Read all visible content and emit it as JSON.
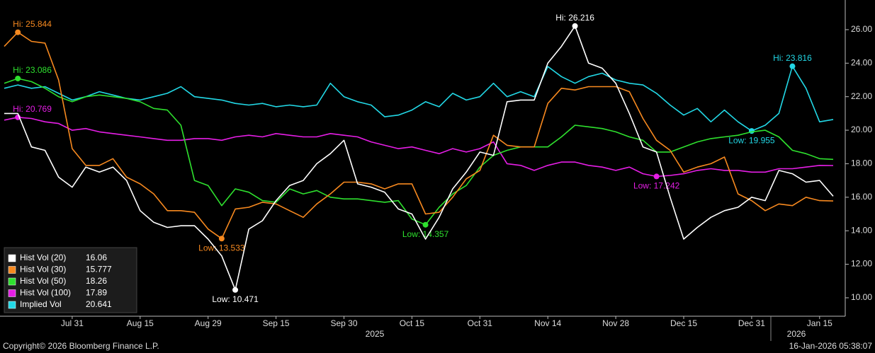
{
  "chart_data": {
    "type": "line",
    "categories": [
      null,
      null,
      null,
      null,
      null,
      "Jul 31",
      null,
      null,
      null,
      null,
      "Aug 15",
      null,
      null,
      null,
      null,
      "Aug 29",
      null,
      null,
      null,
      null,
      "Sep 15",
      null,
      null,
      null,
      null,
      "Sep 30",
      null,
      null,
      null,
      null,
      "Oct 15",
      null,
      null,
      null,
      null,
      "Oct 31",
      null,
      null,
      null,
      null,
      "Nov 14",
      null,
      null,
      null,
      null,
      "Nov 28",
      null,
      null,
      null,
      null,
      "Dec 15",
      null,
      null,
      null,
      null,
      "Dec 31",
      null,
      null,
      null,
      null,
      "Jan 15",
      null
    ],
    "year_labels": [
      "2025",
      "2026"
    ],
    "ylim": [
      8.9,
      27.77
    ],
    "yticks": [
      {
        "value": 10,
        "label": "10.00"
      },
      {
        "value": 12,
        "label": "12.00"
      },
      {
        "value": 14,
        "label": "14.00"
      },
      {
        "value": 16,
        "label": "16.00"
      },
      {
        "value": 18,
        "label": "18.00"
      },
      {
        "value": 20,
        "label": "20.00"
      },
      {
        "value": 22,
        "label": "22.00"
      },
      {
        "value": 24,
        "label": "24.00"
      },
      {
        "value": 26,
        "label": "26.00"
      }
    ],
    "grid": false,
    "legend": "lower left",
    "series": [
      {
        "name": "Implied Vol",
        "color": "#22d8e6",
        "values": [
          22.5,
          22.7,
          22.5,
          22.6,
          22.2,
          21.8,
          22.0,
          22.3,
          22.1,
          21.9,
          21.8,
          22.0,
          22.2,
          22.6,
          22.0,
          21.9,
          21.8,
          21.6,
          21.5,
          21.6,
          21.4,
          21.5,
          21.4,
          21.5,
          22.8,
          22.0,
          21.7,
          21.5,
          20.8,
          20.9,
          21.2,
          21.7,
          21.4,
          22.2,
          21.8,
          22.0,
          22.8,
          22.0,
          22.3,
          22.0,
          23.8,
          23.2,
          22.8,
          23.2,
          23.4,
          23.0,
          22.8,
          22.7,
          22.2,
          21.5,
          20.9,
          21.3,
          20.5,
          21.2,
          20.5,
          19.955,
          20.3,
          21.0,
          23.816,
          22.5,
          20.5,
          20.641
        ],
        "value_labels": [
          null,
          null,
          null,
          null,
          null,
          null,
          null,
          null,
          null,
          null,
          null,
          null,
          null,
          null,
          null,
          null,
          null,
          null,
          null,
          null,
          null,
          null,
          null,
          null,
          null,
          null,
          null,
          null,
          null,
          null,
          null,
          null,
          null,
          null,
          null,
          null,
          null,
          null,
          null,
          null,
          null,
          null,
          null,
          null,
          null,
          null,
          null,
          null,
          null,
          null,
          null,
          null,
          null,
          null,
          null,
          "Low: 19.955",
          null,
          null,
          "Hi: 23.816",
          null,
          null,
          null
        ]
      },
      {
        "name": "Hist Vol (100)",
        "color": "#e61ee6",
        "values": [
          20.6,
          20.769,
          20.7,
          20.5,
          20.4,
          20.0,
          20.1,
          19.9,
          19.8,
          19.7,
          19.6,
          19.5,
          19.4,
          19.4,
          19.5,
          19.5,
          19.4,
          19.6,
          19.7,
          19.6,
          19.8,
          19.7,
          19.6,
          19.6,
          19.8,
          19.7,
          19.6,
          19.3,
          19.1,
          18.9,
          19.0,
          18.8,
          18.6,
          18.9,
          18.7,
          18.9,
          19.3,
          18.0,
          17.9,
          17.6,
          17.9,
          18.1,
          18.1,
          17.9,
          17.8,
          17.6,
          17.8,
          17.4,
          17.242,
          17.3,
          17.4,
          17.6,
          17.7,
          17.6,
          17.6,
          17.5,
          17.5,
          17.7,
          17.7,
          17.8,
          17.9,
          17.89
        ],
        "value_labels": [
          null,
          "Hi: 20.769",
          null,
          null,
          null,
          null,
          null,
          null,
          null,
          null,
          null,
          null,
          null,
          null,
          null,
          null,
          null,
          null,
          null,
          null,
          null,
          null,
          null,
          null,
          null,
          null,
          null,
          null,
          null,
          null,
          null,
          null,
          null,
          null,
          null,
          null,
          null,
          null,
          null,
          null,
          null,
          null,
          null,
          null,
          null,
          null,
          null,
          null,
          "Low: 17.242",
          null,
          null,
          null,
          null,
          null,
          null,
          null,
          null,
          null,
          null,
          null,
          null,
          null
        ]
      },
      {
        "name": "Hist Vol (50)",
        "color": "#2ee02e",
        "values": [
          22.8,
          23.086,
          22.9,
          22.5,
          22.0,
          21.7,
          22.0,
          22.1,
          22.0,
          21.9,
          21.7,
          21.3,
          21.2,
          20.3,
          17.0,
          16.7,
          15.5,
          16.5,
          16.3,
          15.8,
          15.7,
          16.5,
          16.2,
          16.4,
          16.0,
          15.9,
          15.9,
          15.8,
          15.7,
          15.8,
          14.7,
          14.357,
          15.4,
          16.2,
          16.7,
          17.8,
          18.5,
          18.8,
          19.0,
          19.0,
          19.0,
          19.6,
          20.3,
          20.2,
          20.1,
          19.9,
          19.6,
          19.4,
          18.7,
          18.7,
          19.0,
          19.3,
          19.5,
          19.6,
          19.7,
          19.9,
          20.0,
          19.6,
          18.8,
          18.6,
          18.3,
          18.26
        ],
        "value_labels": [
          null,
          "Hi: 23.086",
          null,
          null,
          null,
          null,
          null,
          null,
          null,
          null,
          null,
          null,
          null,
          null,
          null,
          null,
          null,
          null,
          null,
          null,
          null,
          null,
          null,
          null,
          null,
          null,
          null,
          null,
          null,
          null,
          null,
          "Low: 14.357",
          null,
          null,
          null,
          null,
          null,
          null,
          null,
          null,
          null,
          null,
          null,
          null,
          null,
          null,
          null,
          null,
          null,
          null,
          null,
          null,
          null,
          null,
          null,
          null,
          null,
          null,
          null,
          null,
          null,
          null
        ]
      },
      {
        "name": "Hist Vol (30)",
        "color": "#f7891f",
        "values": [
          25.0,
          25.844,
          25.3,
          25.2,
          23.0,
          18.9,
          17.9,
          17.9,
          18.3,
          17.2,
          16.8,
          16.2,
          15.2,
          15.2,
          15.1,
          14.1,
          13.533,
          15.3,
          15.4,
          15.7,
          15.6,
          15.2,
          14.8,
          15.6,
          16.2,
          16.9,
          16.9,
          16.8,
          16.5,
          16.8,
          16.8,
          15.0,
          15.1,
          16.0,
          17.1,
          17.6,
          19.7,
          19.1,
          19.0,
          19.0,
          21.6,
          22.5,
          22.4,
          22.6,
          22.6,
          22.6,
          22.3,
          20.7,
          19.4,
          18.8,
          17.5,
          17.8,
          18.0,
          18.4,
          16.2,
          15.8,
          15.2,
          15.6,
          15.5,
          16.0,
          15.8,
          15.777
        ],
        "value_labels": [
          null,
          "Hi: 25.844",
          null,
          null,
          null,
          null,
          null,
          null,
          null,
          null,
          null,
          null,
          null,
          null,
          null,
          null,
          "Low: 13.533",
          null,
          null,
          null,
          null,
          null,
          null,
          null,
          null,
          null,
          null,
          null,
          null,
          null,
          null,
          null,
          null,
          null,
          null,
          null,
          null,
          null,
          null,
          null,
          null,
          null,
          null,
          null,
          null,
          null,
          null,
          null,
          null,
          null,
          null,
          null,
          null,
          null,
          null,
          null,
          null,
          null,
          null,
          null,
          null,
          null
        ]
      },
      {
        "name": "Hist Vol (20)",
        "color": "#ffffff",
        "values": [
          21.0,
          21.0,
          19.0,
          18.8,
          17.2,
          16.6,
          17.8,
          17.5,
          17.8,
          17.0,
          15.2,
          14.5,
          14.2,
          14.3,
          14.3,
          13.5,
          12.5,
          10.471,
          14.1,
          14.6,
          15.8,
          16.7,
          17.0,
          18.0,
          18.6,
          19.4,
          16.8,
          16.6,
          16.3,
          15.3,
          15.0,
          13.5,
          14.8,
          16.5,
          17.5,
          18.7,
          18.5,
          21.7,
          21.8,
          21.8,
          24.0,
          25.0,
          26.216,
          24.0,
          23.7,
          22.8,
          21.0,
          19.0,
          18.7,
          16.0,
          13.5,
          14.2,
          14.8,
          15.2,
          15.4,
          16.0,
          15.8,
          17.6,
          17.4,
          16.9,
          17.0,
          16.06
        ],
        "value_labels": [
          null,
          null,
          null,
          null,
          null,
          null,
          null,
          null,
          null,
          null,
          null,
          null,
          null,
          null,
          null,
          null,
          null,
          "Low: 10.471",
          null,
          null,
          null,
          null,
          null,
          null,
          null,
          null,
          null,
          null,
          null,
          null,
          null,
          null,
          null,
          null,
          null,
          null,
          null,
          null,
          null,
          null,
          null,
          null,
          "Hi: 26.216",
          null,
          null,
          null,
          null,
          null,
          null,
          null,
          null,
          null,
          null,
          null,
          null,
          null,
          null,
          null,
          null,
          null,
          null,
          null
        ]
      }
    ],
    "footer": {
      "copyright": "Copyright© 2026 Bloomberg Finance L.P.",
      "timestamp": "16-Jan-2026 05:38:07"
    }
  }
}
